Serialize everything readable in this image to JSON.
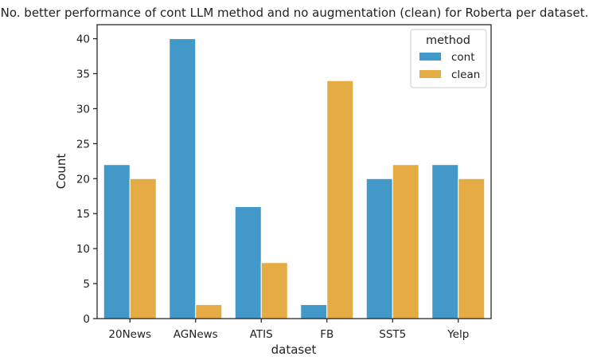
{
  "chart_data": {
    "type": "bar",
    "title": "No. better performance of cont LLM method and no augmentation (clean) for Roberta per dataset.",
    "xlabel": "dataset",
    "ylabel": "Count",
    "categories": [
      "20News",
      "AGNews",
      "ATIS",
      "FB",
      "SST5",
      "Yelp"
    ],
    "series": [
      {
        "name": "cont",
        "values": [
          22,
          40,
          16,
          2,
          20,
          22
        ],
        "color": "#4198c9"
      },
      {
        "name": "clean",
        "values": [
          20,
          2,
          8,
          34,
          22,
          20
        ],
        "color": "#e5ab45"
      }
    ],
    "ylim": [
      0,
      42
    ],
    "yticks": [
      0,
      5,
      10,
      15,
      20,
      25,
      30,
      35,
      40
    ],
    "grid": false,
    "legend": {
      "title": "method",
      "position": "top-right"
    }
  }
}
